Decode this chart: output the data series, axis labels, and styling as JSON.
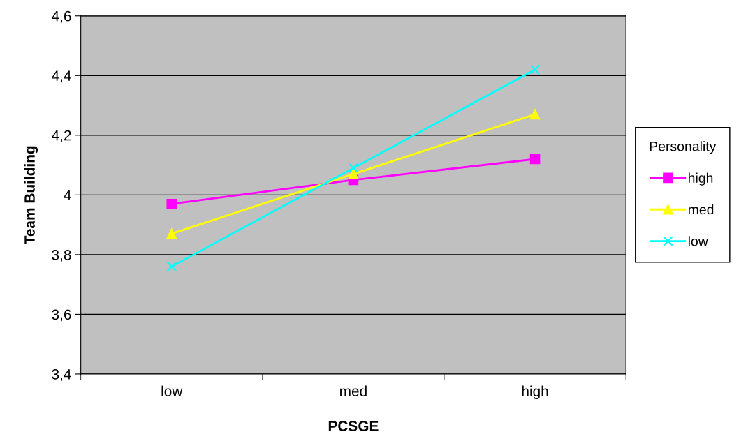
{
  "chart_data": {
    "type": "line",
    "xlabel": "PCSGE",
    "ylabel": "Team Building",
    "legend_title": "Personality",
    "categories": [
      "low",
      "med",
      "high"
    ],
    "series": [
      {
        "name": "high",
        "color": "#ff00ff",
        "marker": "square",
        "values": [
          3.97,
          4.05,
          4.12
        ]
      },
      {
        "name": "med",
        "color": "#ffff00",
        "marker": "triangle",
        "values": [
          3.87,
          4.07,
          4.27
        ]
      },
      {
        "name": "low",
        "color": "#00ffff",
        "marker": "cross",
        "values": [
          3.76,
          4.09,
          4.42
        ]
      }
    ],
    "ylim": [
      3.4,
      4.6
    ],
    "yticks": [
      {
        "value": 3.4,
        "label": "3,4"
      },
      {
        "value": 3.6,
        "label": "3,6"
      },
      {
        "value": 3.8,
        "label": "3,8"
      },
      {
        "value": 4,
        "label": "4"
      },
      {
        "value": 4.2,
        "label": "4,2"
      },
      {
        "value": 4.4,
        "label": "4,4"
      },
      {
        "value": 4.6,
        "label": "4,6"
      }
    ],
    "grid": "y",
    "legend": "right",
    "line_style": "solid"
  }
}
